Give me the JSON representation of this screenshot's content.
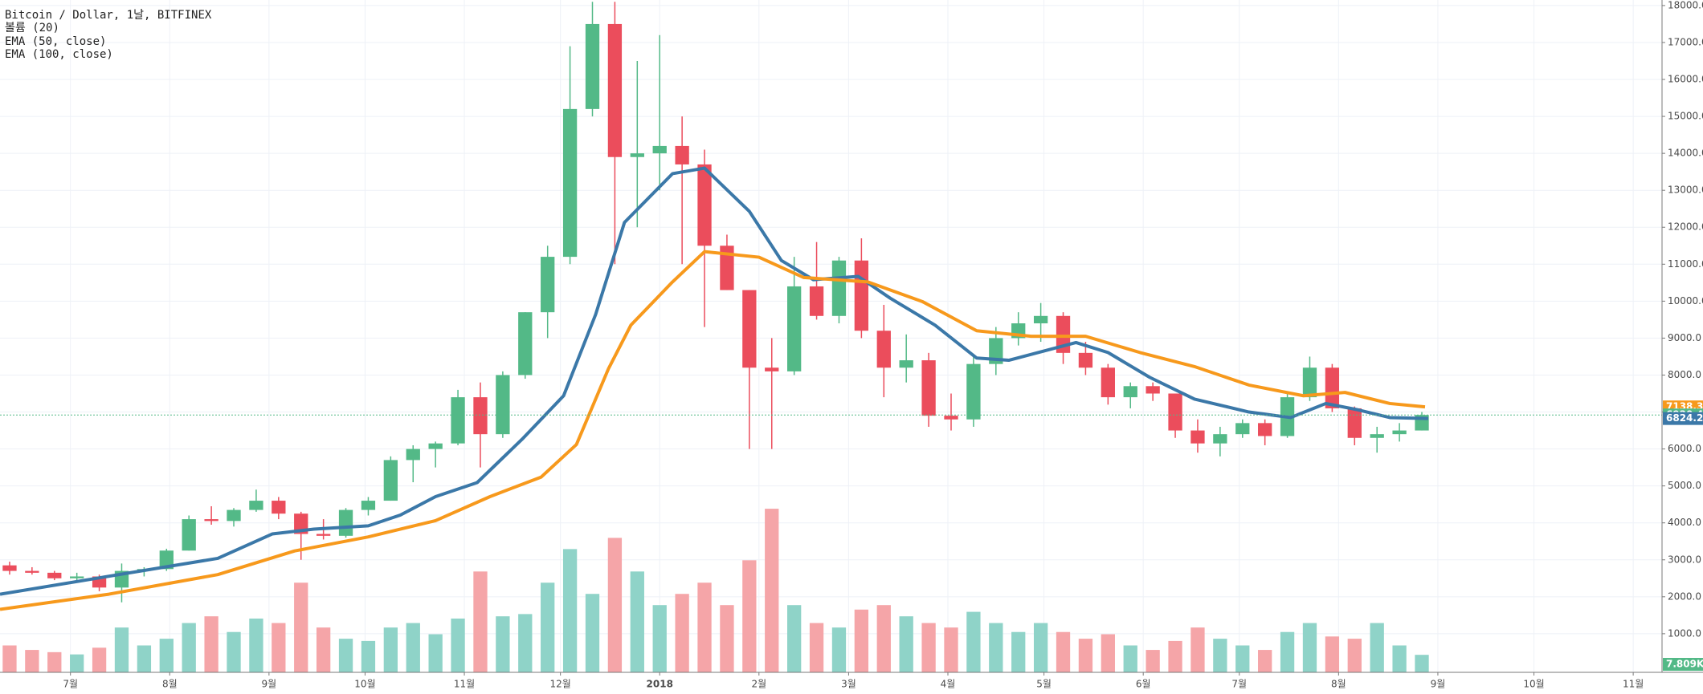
{
  "chart_data": {
    "type": "candlestick",
    "title": "Bitcoin / Dollar, 1날, BITFINEX",
    "xlim": [
      0,
      519
    ],
    "xticks": [
      {
        "value": 22,
        "label": "7월"
      },
      {
        "value": 53,
        "label": "8월"
      },
      {
        "value": 84,
        "label": "9월"
      },
      {
        "value": 114,
        "label": "10월"
      },
      {
        "value": 145,
        "label": "11월"
      },
      {
        "value": 175,
        "label": "12월"
      },
      {
        "value": 206,
        "label": "2018"
      },
      {
        "value": 237,
        "label": "2월"
      },
      {
        "value": 265,
        "label": "3월"
      },
      {
        "value": 296,
        "label": "4월"
      },
      {
        "value": 326,
        "label": "5월"
      },
      {
        "value": 357,
        "label": "6월"
      },
      {
        "value": 387,
        "label": "7월"
      },
      {
        "value": 418,
        "label": "8월"
      },
      {
        "value": 449,
        "label": "9월"
      },
      {
        "value": 479,
        "label": "10월"
      },
      {
        "value": 510,
        "label": "11월"
      }
    ],
    "ylim": [
      -45,
      18150
    ],
    "yticks": [
      {
        "value": 1000,
        "label": "1000.0"
      },
      {
        "value": 2000,
        "label": "2000.0"
      },
      {
        "value": 3000,
        "label": "3000.0"
      },
      {
        "value": 4000,
        "label": "4000.0"
      },
      {
        "value": 5000,
        "label": "5000.0"
      },
      {
        "value": 6000,
        "label": "6000.0"
      },
      {
        "value": 7000,
        "label": "7000.0"
      },
      {
        "value": 8000,
        "label": "8000.0"
      },
      {
        "value": 9000,
        "label": "9000.0"
      },
      {
        "value": 10000,
        "label": "10000.0"
      },
      {
        "value": 11000,
        "label": "11000.0"
      },
      {
        "value": 12000,
        "label": "12000.0"
      },
      {
        "value": 13000,
        "label": "13000.0"
      },
      {
        "value": 14000,
        "label": "14000.0"
      },
      {
        "value": 15000,
        "label": "15000.0"
      },
      {
        "value": 16000,
        "label": "16000.0"
      },
      {
        "value": 17000,
        "label": "17000.0"
      },
      {
        "value": 18000,
        "label": "18000.0"
      }
    ],
    "grid": true,
    "candles": {
      "up_color": "#53b987",
      "down_color": "#eb4d5c",
      "x": [
        3,
        10,
        17,
        24,
        31,
        38,
        45,
        52,
        59,
        66,
        73,
        80,
        87,
        94,
        101,
        108,
        115,
        122,
        129,
        136,
        143,
        150,
        157,
        164,
        171,
        178,
        185,
        192,
        199,
        206,
        213,
        220,
        227,
        234,
        241,
        248,
        255,
        262,
        269,
        276,
        283,
        290,
        297,
        304,
        311,
        318,
        325,
        332,
        339,
        346,
        353,
        360,
        367,
        374,
        381,
        388,
        395,
        402,
        409,
        416,
        423,
        430,
        437,
        444
      ],
      "open": [
        2850,
        2700,
        2650,
        2500,
        2550,
        2250,
        2700,
        2750,
        3250,
        4100,
        4050,
        4350,
        4600,
        4250,
        3700,
        3650,
        4350,
        4600,
        5700,
        6000,
        6150,
        7400,
        6400,
        8000,
        9700,
        11200,
        15200,
        17500,
        13900,
        14000,
        14200,
        13700,
        11500,
        10300,
        8200,
        8100,
        10400,
        9600,
        11100,
        9200,
        8200,
        8400,
        6900,
        6800,
        8300,
        9000,
        9400,
        9600,
        8600,
        8200,
        7400,
        7700,
        7500,
        6500,
        6150,
        6400,
        6700,
        6350,
        7400,
        8200,
        7100,
        6300,
        6400,
        6500
      ],
      "high": [
        2950,
        2800,
        2700,
        2650,
        2600,
        2900,
        2800,
        3300,
        4200,
        4450,
        4400,
        4900,
        4700,
        4300,
        4100,
        4400,
        4700,
        5800,
        6100,
        6200,
        7600,
        7800,
        8100,
        9700,
        11500,
        16900,
        18100,
        18100,
        16500,
        17200,
        15000,
        14100,
        11800,
        10300,
        9000,
        11200,
        11600,
        11200,
        11700,
        9900,
        9100,
        8600,
        7500,
        8500,
        9300,
        9700,
        9950,
        9700,
        8900,
        8300,
        7800,
        7800,
        7500,
        6800,
        6600,
        6800,
        6800,
        7500,
        8500,
        8300,
        7150,
        6600,
        6700,
        7000
      ],
      "low": [
        2600,
        2600,
        2450,
        2400,
        2150,
        1850,
        2550,
        2700,
        3250,
        3950,
        3900,
        4300,
        4100,
        3000,
        3550,
        3600,
        4200,
        4600,
        5100,
        5500,
        6100,
        5500,
        6300,
        7900,
        9000,
        11000,
        15000,
        11000,
        12000,
        13000,
        11000,
        9300,
        10300,
        6000,
        6000,
        8000,
        9500,
        9400,
        9000,
        7400,
        7800,
        6600,
        6500,
        6600,
        8000,
        8800,
        8900,
        8300,
        8000,
        7200,
        7100,
        7300,
        6300,
        5900,
        5800,
        6300,
        6100,
        6300,
        7300,
        7000,
        6100,
        5900,
        6200,
        6500
      ],
      "close": [
        2700,
        2650,
        2500,
        2550,
        2250,
        2700,
        2750,
        3250,
        4100,
        4050,
        4350,
        4600,
        4250,
        3700,
        3650,
        4350,
        4600,
        5700,
        6000,
        6150,
        7400,
        6400,
        8000,
        9700,
        11200,
        15200,
        17500,
        13900,
        14000,
        14200,
        13700,
        11500,
        10300,
        8200,
        8100,
        10400,
        9600,
        11100,
        9200,
        8200,
        8400,
        6900,
        6800,
        8300,
        9000,
        9400,
        9600,
        8600,
        8200,
        7400,
        7700,
        7500,
        6500,
        6150,
        6400,
        6700,
        6350,
        7400,
        8200,
        7100,
        6300,
        6400,
        6500,
        6920.4
      ]
    },
    "volume": {
      "name": "볼륨 (20)",
      "up_color": "#8fd3c8",
      "down_color": "#f5a5a8",
      "vlim": [
        0,
        300000
      ],
      "values": [
        12000,
        10000,
        9000,
        8000,
        11000,
        20000,
        12000,
        15000,
        22000,
        25000,
        18000,
        24000,
        22000,
        40000,
        20000,
        15000,
        14000,
        20000,
        22000,
        17000,
        24000,
        45000,
        25000,
        26000,
        40000,
        55000,
        35000,
        60000,
        45000,
        30000,
        35000,
        40000,
        30000,
        50000,
        73000,
        30000,
        22000,
        20000,
        28000,
        30000,
        25000,
        22000,
        20000,
        27000,
        22000,
        18000,
        22000,
        18000,
        15000,
        17000,
        12000,
        10000,
        14000,
        20000,
        15000,
        12000,
        10000,
        18000,
        22000,
        16000,
        15000,
        22000,
        12000,
        7809
      ],
      "value_labels": {
        "63": "7.809K"
      }
    },
    "series": [
      {
        "name": "EMA (50, close)",
        "color": "#3b78a8",
        "x": [
          0,
          68,
          85,
          98,
          115,
          125,
          136,
          149,
          163,
          176,
          186,
          195,
          210,
          220,
          234,
          244,
          254,
          268,
          278,
          292,
          305,
          315,
          336,
          346,
          359,
          373,
          390,
          403,
          414,
          424,
          434,
          446
        ],
        "values": [
          2070,
          3040,
          3700,
          3830,
          3920,
          4210,
          4710,
          5090,
          6260,
          7440,
          9640,
          12130,
          13450,
          13600,
          12430,
          11100,
          10580,
          10670,
          10080,
          9350,
          8460,
          8400,
          8880,
          8610,
          7940,
          7350,
          7000,
          6850,
          7230,
          7060,
          6850,
          6824.2
        ]
      },
      {
        "name": "EMA (100, close)",
        "color": "#f7991c",
        "x": [
          0,
          34,
          68,
          92,
          115,
          136,
          153,
          169,
          180,
          190,
          197,
          210,
          220,
          237,
          251,
          271,
          288,
          305,
          322,
          339,
          356,
          373,
          390,
          407,
          420,
          434,
          445
        ],
        "values": [
          1660,
          2070,
          2600,
          3240,
          3620,
          4060,
          4710,
          5240,
          6120,
          8170,
          9350,
          10520,
          11340,
          11190,
          10640,
          10520,
          9990,
          9200,
          9050,
          9050,
          8610,
          8230,
          7730,
          7440,
          7530,
          7230,
          7138.3
        ]
      }
    ]
  }
}
